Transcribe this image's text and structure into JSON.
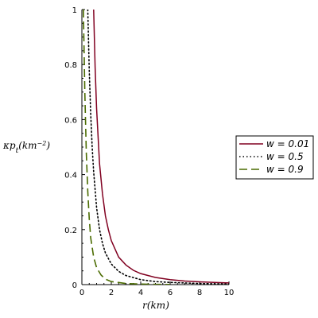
{
  "chart_data": {
    "type": "line",
    "title": "",
    "xlabel_prefix": "r(",
    "xlabel_unit": "km",
    "xlabel_suffix": ")",
    "ylabel_prefix": "κp",
    "ylabel_sub": "t",
    "ylabel_open": "(",
    "ylabel_unit": "km",
    "ylabel_exp": "−2",
    "ylabel_close": ")",
    "xlim": [
      0,
      10
    ],
    "ylim": [
      0,
      1
    ],
    "xticks": [
      0,
      2,
      4,
      6,
      8,
      10
    ],
    "xtick_labels": [
      "0",
      "2",
      "4",
      "6",
      "8",
      "10"
    ],
    "yticks": [
      0,
      0.2,
      0.4,
      0.6,
      0.8,
      1
    ],
    "ytick_labels": [
      "0",
      "0.2",
      "0.4",
      "0.6",
      "0.8",
      "1"
    ],
    "grid": false,
    "legend_position": "right",
    "series": [
      {
        "name": "w = 0.01",
        "color": "#800020",
        "dash": "solid",
        "x": [
          0.8,
          0.9,
          1.0,
          1.2,
          1.4,
          1.6,
          1.8,
          2.0,
          2.5,
          3.0,
          3.5,
          4.0,
          5.0,
          6.0,
          7.0,
          8.0,
          9.0,
          10.0
        ],
        "y": [
          1.0,
          0.79,
          0.64,
          0.44,
          0.33,
          0.25,
          0.2,
          0.16,
          0.1,
          0.071,
          0.052,
          0.04,
          0.026,
          0.018,
          0.013,
          0.01,
          0.008,
          0.006
        ]
      },
      {
        "name": "w = 0.5",
        "color": "#000000",
        "dash": "dotted",
        "x": [
          0.4,
          0.5,
          0.6,
          0.7,
          0.8,
          1.0,
          1.2,
          1.4,
          1.6,
          2.0,
          2.5,
          3.0,
          4.0,
          5.0,
          6.0,
          8.0,
          10.0
        ],
        "y": [
          1.0,
          0.78,
          0.62,
          0.5,
          0.41,
          0.28,
          0.2,
          0.15,
          0.115,
          0.075,
          0.048,
          0.033,
          0.018,
          0.011,
          0.008,
          0.004,
          0.002
        ]
      },
      {
        "name": "w = 0.9",
        "color": "#4a6b00",
        "dash": "dashed",
        "x": [
          0.1,
          0.15,
          0.2,
          0.3,
          0.4,
          0.5,
          0.6,
          0.8,
          1.0,
          1.3,
          1.6,
          2.0,
          3.0,
          4.0,
          5.0,
          6.0
        ],
        "y": [
          1.0,
          0.85,
          0.7,
          0.48,
          0.34,
          0.24,
          0.17,
          0.1,
          0.062,
          0.035,
          0.02,
          0.011,
          0.004,
          0.002,
          0.001,
          0.0005
        ]
      }
    ]
  }
}
